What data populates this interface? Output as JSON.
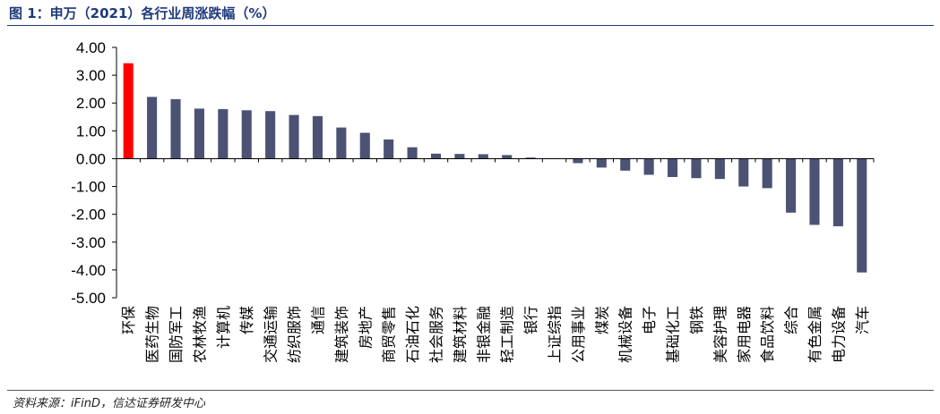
{
  "figure": {
    "title": "图 1：申万（2021）各行业周涨跌幅（%）",
    "source": "资料来源：iFinD，信达证券研发中心"
  },
  "colors": {
    "highlight": "#ff0000",
    "bar": "#4b5273",
    "title": "#1f3a7a",
    "axis": "#000000"
  },
  "chart_data": {
    "type": "bar",
    "title": "申万（2021）各行业周涨跌幅（%）",
    "xlabel": "",
    "ylabel": "",
    "ylim": [
      -5,
      4
    ],
    "yticks": [
      "4.00",
      "3.00",
      "2.00",
      "1.00",
      "0.00",
      "-1.00",
      "-2.00",
      "-3.00",
      "-4.00",
      "-5.00"
    ],
    "grid": false,
    "highlight_index": 0,
    "categories": [
      "环保",
      "医药生物",
      "国防军工",
      "农林牧渔",
      "计算机",
      "传媒",
      "交通运输",
      "纺织服饰",
      "通信",
      "建筑装饰",
      "房地产",
      "商贸零售",
      "石油石化",
      "社会服务",
      "建筑材料",
      "非银金融",
      "轻工制造",
      "银行",
      "上证综指",
      "公用事业",
      "煤炭",
      "机械设备",
      "电子",
      "基础化工",
      "钢铁",
      "美容护理",
      "家用电器",
      "食品饮料",
      "综合",
      "有色金属",
      "电力设备",
      "汽车"
    ],
    "values": [
      3.43,
      2.22,
      2.14,
      1.8,
      1.78,
      1.74,
      1.71,
      1.57,
      1.53,
      1.12,
      0.93,
      0.69,
      0.41,
      0.18,
      0.17,
      0.16,
      0.13,
      0.04,
      0.01,
      -0.16,
      -0.32,
      -0.43,
      -0.58,
      -0.66,
      -0.7,
      -0.73,
      -1.0,
      -1.06,
      -1.94,
      -2.38,
      -2.43,
      -4.09
    ]
  }
}
